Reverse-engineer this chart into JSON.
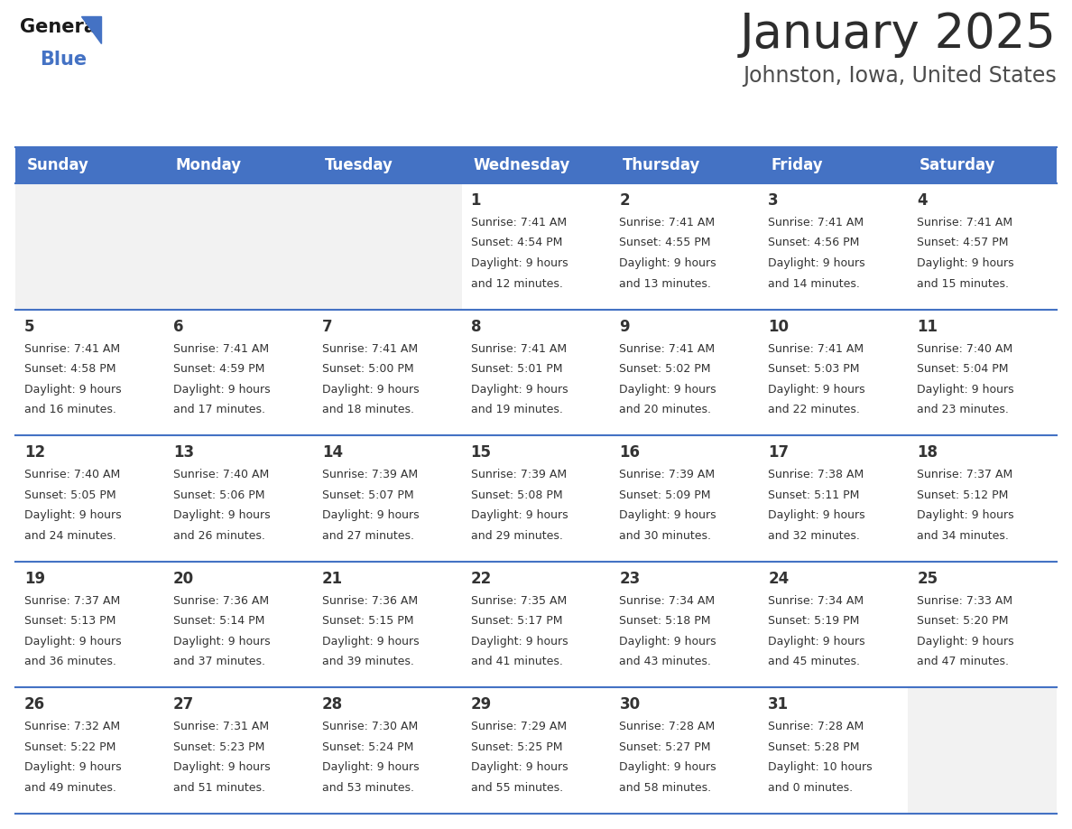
{
  "title": "January 2025",
  "subtitle": "Johnston, Iowa, United States",
  "title_color": "#2d2d2d",
  "subtitle_color": "#4d4d4d",
  "header_bg_color": "#4472c4",
  "header_text_color": "#ffffff",
  "cell_bg_white": "#ffffff",
  "cell_bg_gray": "#f2f2f2",
  "border_color": "#4472c4",
  "text_color": "#333333",
  "days_of_week": [
    "Sunday",
    "Monday",
    "Tuesday",
    "Wednesday",
    "Thursday",
    "Friday",
    "Saturday"
  ],
  "weeks": [
    [
      {
        "day": "",
        "sunrise": "",
        "sunset": "",
        "daylight": ""
      },
      {
        "day": "",
        "sunrise": "",
        "sunset": "",
        "daylight": ""
      },
      {
        "day": "",
        "sunrise": "",
        "sunset": "",
        "daylight": ""
      },
      {
        "day": "1",
        "sunrise": "7:41 AM",
        "sunset": "4:54 PM",
        "daylight": "9 hours and 12 minutes."
      },
      {
        "day": "2",
        "sunrise": "7:41 AM",
        "sunset": "4:55 PM",
        "daylight": "9 hours and 13 minutes."
      },
      {
        "day": "3",
        "sunrise": "7:41 AM",
        "sunset": "4:56 PM",
        "daylight": "9 hours and 14 minutes."
      },
      {
        "day": "4",
        "sunrise": "7:41 AM",
        "sunset": "4:57 PM",
        "daylight": "9 hours and 15 minutes."
      }
    ],
    [
      {
        "day": "5",
        "sunrise": "7:41 AM",
        "sunset": "4:58 PM",
        "daylight": "9 hours and 16 minutes."
      },
      {
        "day": "6",
        "sunrise": "7:41 AM",
        "sunset": "4:59 PM",
        "daylight": "9 hours and 17 minutes."
      },
      {
        "day": "7",
        "sunrise": "7:41 AM",
        "sunset": "5:00 PM",
        "daylight": "9 hours and 18 minutes."
      },
      {
        "day": "8",
        "sunrise": "7:41 AM",
        "sunset": "5:01 PM",
        "daylight": "9 hours and 19 minutes."
      },
      {
        "day": "9",
        "sunrise": "7:41 AM",
        "sunset": "5:02 PM",
        "daylight": "9 hours and 20 minutes."
      },
      {
        "day": "10",
        "sunrise": "7:41 AM",
        "sunset": "5:03 PM",
        "daylight": "9 hours and 22 minutes."
      },
      {
        "day": "11",
        "sunrise": "7:40 AM",
        "sunset": "5:04 PM",
        "daylight": "9 hours and 23 minutes."
      }
    ],
    [
      {
        "day": "12",
        "sunrise": "7:40 AM",
        "sunset": "5:05 PM",
        "daylight": "9 hours and 24 minutes."
      },
      {
        "day": "13",
        "sunrise": "7:40 AM",
        "sunset": "5:06 PM",
        "daylight": "9 hours and 26 minutes."
      },
      {
        "day": "14",
        "sunrise": "7:39 AM",
        "sunset": "5:07 PM",
        "daylight": "9 hours and 27 minutes."
      },
      {
        "day": "15",
        "sunrise": "7:39 AM",
        "sunset": "5:08 PM",
        "daylight": "9 hours and 29 minutes."
      },
      {
        "day": "16",
        "sunrise": "7:39 AM",
        "sunset": "5:09 PM",
        "daylight": "9 hours and 30 minutes."
      },
      {
        "day": "17",
        "sunrise": "7:38 AM",
        "sunset": "5:11 PM",
        "daylight": "9 hours and 32 minutes."
      },
      {
        "day": "18",
        "sunrise": "7:37 AM",
        "sunset": "5:12 PM",
        "daylight": "9 hours and 34 minutes."
      }
    ],
    [
      {
        "day": "19",
        "sunrise": "7:37 AM",
        "sunset": "5:13 PM",
        "daylight": "9 hours and 36 minutes."
      },
      {
        "day": "20",
        "sunrise": "7:36 AM",
        "sunset": "5:14 PM",
        "daylight": "9 hours and 37 minutes."
      },
      {
        "day": "21",
        "sunrise": "7:36 AM",
        "sunset": "5:15 PM",
        "daylight": "9 hours and 39 minutes."
      },
      {
        "day": "22",
        "sunrise": "7:35 AM",
        "sunset": "5:17 PM",
        "daylight": "9 hours and 41 minutes."
      },
      {
        "day": "23",
        "sunrise": "7:34 AM",
        "sunset": "5:18 PM",
        "daylight": "9 hours and 43 minutes."
      },
      {
        "day": "24",
        "sunrise": "7:34 AM",
        "sunset": "5:19 PM",
        "daylight": "9 hours and 45 minutes."
      },
      {
        "day": "25",
        "sunrise": "7:33 AM",
        "sunset": "5:20 PM",
        "daylight": "9 hours and 47 minutes."
      }
    ],
    [
      {
        "day": "26",
        "sunrise": "7:32 AM",
        "sunset": "5:22 PM",
        "daylight": "9 hours and 49 minutes."
      },
      {
        "day": "27",
        "sunrise": "7:31 AM",
        "sunset": "5:23 PM",
        "daylight": "9 hours and 51 minutes."
      },
      {
        "day": "28",
        "sunrise": "7:30 AM",
        "sunset": "5:24 PM",
        "daylight": "9 hours and 53 minutes."
      },
      {
        "day": "29",
        "sunrise": "7:29 AM",
        "sunset": "5:25 PM",
        "daylight": "9 hours and 55 minutes."
      },
      {
        "day": "30",
        "sunrise": "7:28 AM",
        "sunset": "5:27 PM",
        "daylight": "9 hours and 58 minutes."
      },
      {
        "day": "31",
        "sunrise": "7:28 AM",
        "sunset": "5:28 PM",
        "daylight": "10 hours and 0 minutes."
      },
      {
        "day": "",
        "sunrise": "",
        "sunset": "",
        "daylight": ""
      }
    ]
  ],
  "logo_general_color": "#1a1a1a",
  "logo_blue_color": "#4472c4",
  "logo_triangle_color": "#4472c4",
  "title_fontsize": 38,
  "subtitle_fontsize": 17,
  "header_fontsize": 12,
  "day_num_fontsize": 12,
  "cell_text_fontsize": 9
}
